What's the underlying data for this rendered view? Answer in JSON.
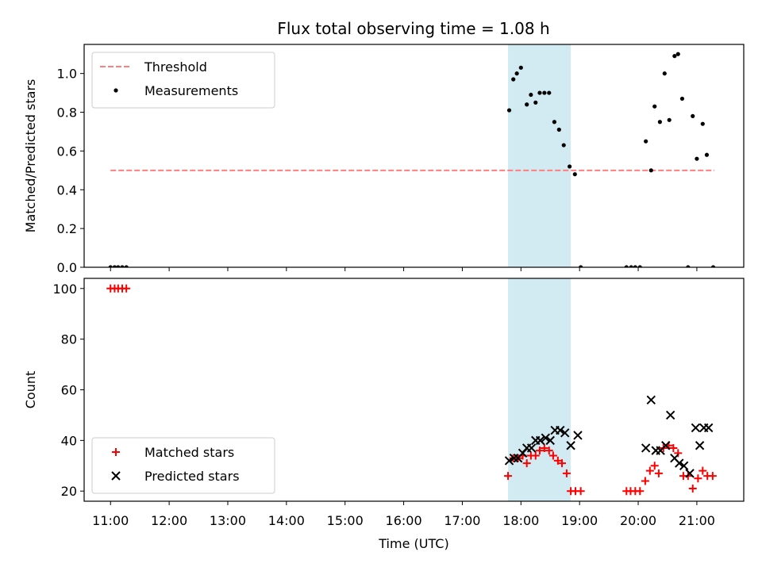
{
  "title": "Flux total observing time = 1.08 h",
  "colors": {
    "threshold": "#ff7f7f",
    "measurements": "#000000",
    "matched": "#ff0000",
    "predicted": "#000000",
    "span": "#add8e6"
  },
  "chart_data": [
    {
      "type": "scatter",
      "panel": "top",
      "ylabel": "Matched/Predicted stars",
      "xlim": [
        10.55,
        21.8
      ],
      "ylim": [
        0,
        1.15
      ],
      "yticks": [
        0.0,
        0.2,
        0.4,
        0.6,
        0.8,
        1.0
      ],
      "ytick_labels": [
        "0.0",
        "0.2",
        "0.4",
        "0.6",
        "0.8",
        "1.0"
      ],
      "legend_position": "upper left",
      "shaded_span": [
        17.78,
        18.85
      ],
      "threshold": {
        "name": "Threshold",
        "y": 0.5,
        "x_range": [
          11.0,
          21.3
        ]
      },
      "series": [
        {
          "name": "Measurements",
          "x": [
            11.0,
            11.07,
            11.13,
            11.2,
            11.27,
            17.8,
            17.87,
            17.93,
            18.0,
            18.1,
            18.17,
            18.25,
            18.32,
            18.4,
            18.48,
            18.57,
            18.65,
            18.73,
            18.83,
            18.92,
            19.02,
            19.8,
            19.88,
            19.95,
            20.03,
            20.13,
            20.22,
            20.28,
            20.37,
            20.45,
            20.53,
            20.62,
            20.68,
            20.75,
            20.85,
            20.93,
            21.0,
            21.1,
            21.17,
            21.28
          ],
          "y": [
            0,
            0,
            0,
            0,
            0,
            0.81,
            0.97,
            1.0,
            1.03,
            0.84,
            0.89,
            0.85,
            0.9,
            0.9,
            0.9,
            0.75,
            0.71,
            0.63,
            0.52,
            0.48,
            0,
            0,
            0,
            0,
            0,
            0.65,
            0.5,
            0.83,
            0.75,
            1.0,
            0.76,
            1.09,
            1.1,
            0.87,
            0,
            0.78,
            0.56,
            0.74,
            0.58,
            0
          ]
        }
      ]
    },
    {
      "type": "scatter",
      "panel": "bottom",
      "xlabel": "Time (UTC)",
      "ylabel": "Count",
      "xlim": [
        10.55,
        21.8
      ],
      "ylim": [
        16,
        104
      ],
      "yticks": [
        20,
        40,
        60,
        80,
        100
      ],
      "ytick_labels": [
        "20",
        "40",
        "60",
        "80",
        "100"
      ],
      "xticks": [
        11,
        12,
        13,
        14,
        15,
        16,
        17,
        18,
        19,
        20,
        21
      ],
      "xtick_labels": [
        "11:00",
        "12:00",
        "13:00",
        "14:00",
        "15:00",
        "16:00",
        "17:00",
        "18:00",
        "19:00",
        "20:00",
        "21:00"
      ],
      "legend_position": "lower left",
      "shaded_span": [
        17.78,
        18.85
      ],
      "series": [
        {
          "name": "Matched stars",
          "x": [
            11.0,
            11.07,
            11.13,
            11.2,
            11.27,
            17.78,
            17.87,
            17.95,
            18.03,
            18.1,
            18.17,
            18.25,
            18.32,
            18.4,
            18.48,
            18.55,
            18.63,
            18.7,
            18.78,
            18.85,
            18.93,
            19.02,
            19.8,
            19.87,
            19.95,
            20.03,
            20.12,
            20.2,
            20.28,
            20.35,
            20.43,
            20.52,
            20.6,
            20.68,
            20.77,
            20.85,
            20.93,
            21.02,
            21.1,
            21.18,
            21.27
          ],
          "y": [
            100,
            100,
            100,
            100,
            100,
            26,
            33,
            33,
            34,
            31,
            34,
            34,
            36,
            37,
            36,
            34,
            32,
            31,
            27,
            20,
            20,
            20,
            20,
            20,
            20,
            20,
            24,
            28,
            30,
            27,
            37,
            38,
            37,
            35,
            26,
            26,
            21,
            25,
            28,
            26,
            26
          ]
        },
        {
          "name": "Predicted stars",
          "x": [
            17.8,
            17.88,
            17.95,
            18.03,
            18.1,
            18.18,
            18.25,
            18.33,
            18.42,
            18.5,
            18.58,
            18.67,
            18.75,
            18.85,
            18.97,
            20.13,
            20.22,
            20.3,
            20.38,
            20.47,
            20.55,
            20.62,
            20.7,
            20.78,
            20.88,
            20.98,
            21.05,
            21.12,
            21.2
          ],
          "y": [
            32,
            33,
            33,
            35,
            37,
            37,
            40,
            40,
            41,
            40,
            44,
            44,
            43,
            38,
            42,
            37,
            56,
            36,
            36,
            38,
            50,
            33,
            31,
            30,
            27,
            45,
            38,
            45,
            45
          ]
        }
      ]
    }
  ]
}
